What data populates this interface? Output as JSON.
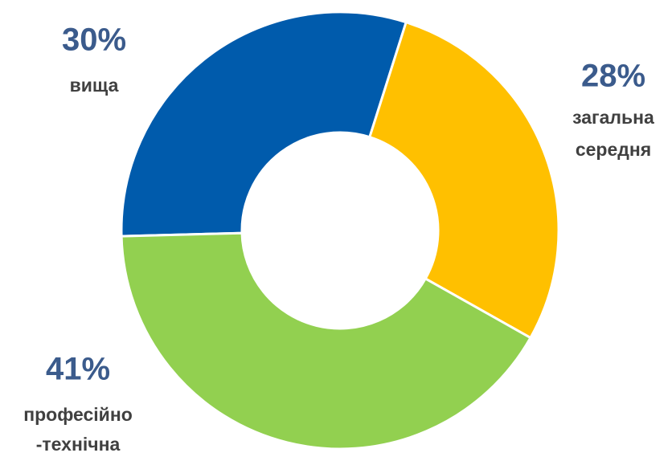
{
  "chart_data": {
    "type": "donut",
    "categories": [
      [
        "вища"
      ],
      [
        "загальна",
        "середня"
      ],
      [
        "професійно",
        "-технічна"
      ]
    ],
    "series": [
      {
        "values": [
          30,
          28,
          41
        ],
        "value_labels": [
          "30%",
          "28%",
          "41%"
        ],
        "colors": [
          "#005bac",
          "#ffc000",
          "#92d050"
        ]
      }
    ]
  }
}
